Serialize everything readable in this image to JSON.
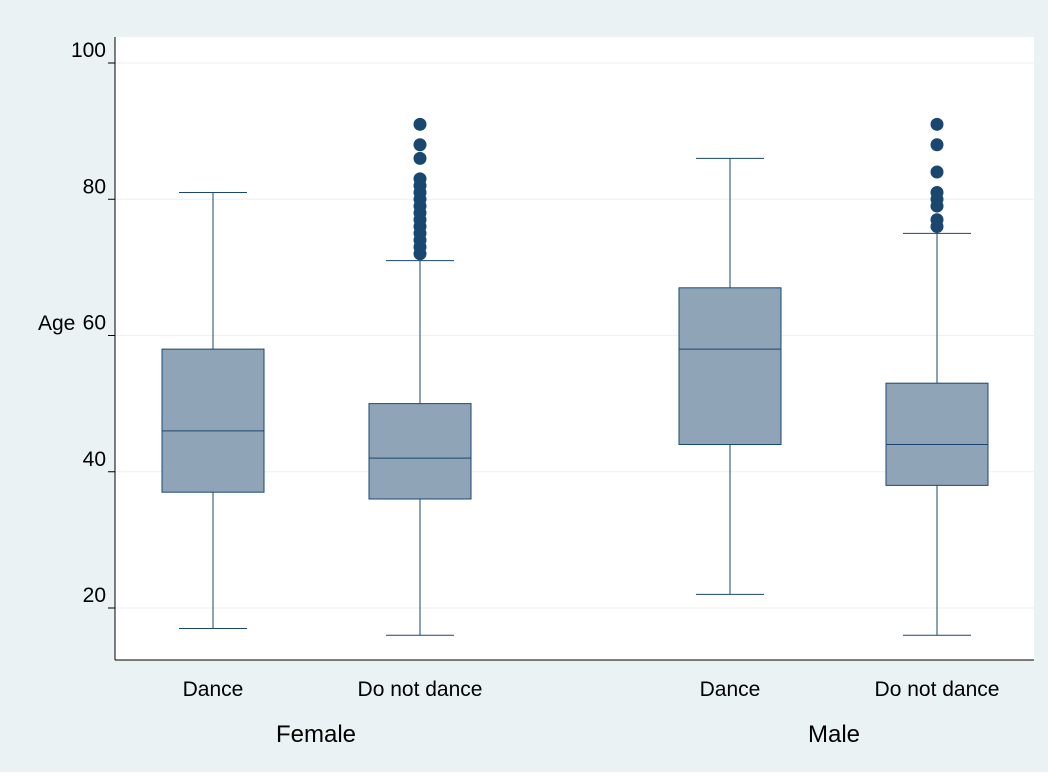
{
  "colors": {
    "outer_background": "#eaf2f3",
    "plot_background": "#ffffff",
    "box_fill": "#90a4b8",
    "line": "#1a476f",
    "outlier": "#1a476f",
    "grid": "#eaf2f3",
    "axis": "#000000",
    "text": "#000000"
  },
  "chart_data": {
    "type": "box",
    "title": "",
    "ylabel": "Age",
    "ylim": [
      12,
      105
    ],
    "yticks": [
      20,
      40,
      60,
      80,
      100
    ],
    "ytick_labels": [
      "20",
      "40",
      "60",
      "80",
      "100"
    ],
    "grid": true,
    "groups": [
      {
        "label": "Female",
        "boxes": [
          {
            "label": "Dance",
            "whisker_low": 17,
            "q1": 37,
            "median": 46,
            "q3": 58,
            "whisker_high": 81,
            "outliers": []
          },
          {
            "label": "Do not dance",
            "whisker_low": 16,
            "q1": 36,
            "median": 42,
            "q3": 50,
            "whisker_high": 71,
            "outliers": [
              72,
              73,
              74,
              75,
              76,
              77,
              78,
              79,
              80,
              81,
              82,
              83,
              86,
              88,
              91
            ]
          }
        ]
      },
      {
        "label": "Male",
        "boxes": [
          {
            "label": "Dance",
            "whisker_low": 22,
            "q1": 44,
            "median": 58,
            "q3": 67,
            "whisker_high": 86,
            "outliers": []
          },
          {
            "label": "Do not dance",
            "whisker_low": 16,
            "q1": 38,
            "median": 44,
            "q3": 53,
            "whisker_high": 75,
            "outliers": [
              76,
              77,
              79,
              80,
              81,
              84,
              88,
              91
            ]
          }
        ]
      }
    ]
  }
}
